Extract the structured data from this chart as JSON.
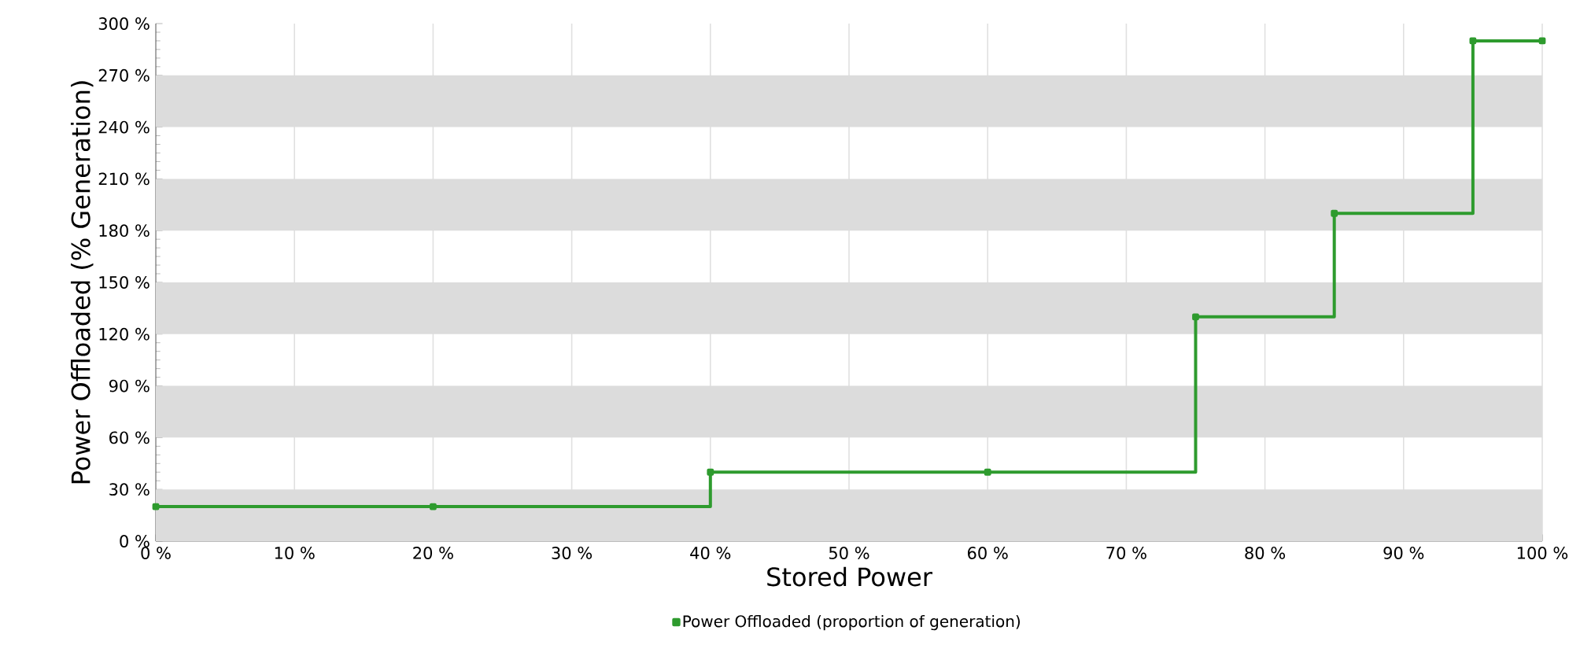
{
  "chart_data": {
    "type": "step",
    "xlabel": "Stored Power",
    "ylabel": "Power Offloaded (% Generation)",
    "xlim": [
      0,
      100
    ],
    "ylim": [
      0,
      300
    ],
    "xticks": [
      {
        "value": 0,
        "label": "0 %"
      },
      {
        "value": 10,
        "label": "10 %"
      },
      {
        "value": 20,
        "label": "20 %"
      },
      {
        "value": 30,
        "label": "30 %"
      },
      {
        "value": 40,
        "label": "40 %"
      },
      {
        "value": 50,
        "label": "50 %"
      },
      {
        "value": 60,
        "label": "60 %"
      },
      {
        "value": 70,
        "label": "70 %"
      },
      {
        "value": 80,
        "label": "80 %"
      },
      {
        "value": 90,
        "label": "90 %"
      },
      {
        "value": 100,
        "label": "100 %"
      }
    ],
    "yticks": [
      {
        "value": 0,
        "label": "0 %"
      },
      {
        "value": 30,
        "label": "30 %"
      },
      {
        "value": 60,
        "label": "60 %"
      },
      {
        "value": 90,
        "label": "90 %"
      },
      {
        "value": 120,
        "label": "120 %"
      },
      {
        "value": 150,
        "label": "150 %"
      },
      {
        "value": 180,
        "label": "180 %"
      },
      {
        "value": 210,
        "label": "210 %"
      },
      {
        "value": 240,
        "label": "240 %"
      },
      {
        "value": 270,
        "label": "270 %"
      },
      {
        "value": 300,
        "label": "300 %"
      }
    ],
    "grid": "x",
    "legend": "bottom",
    "marker": "square",
    "line_style": "solid",
    "bands": [
      {
        "axis": "y",
        "from": 0,
        "to": 30,
        "color": "#dcdcdc"
      },
      {
        "axis": "y",
        "from": 60,
        "to": 90,
        "color": "#dcdcdc"
      },
      {
        "axis": "y",
        "from": 120,
        "to": 150,
        "color": "#dcdcdc"
      },
      {
        "axis": "y",
        "from": 180,
        "to": 210,
        "color": "#dcdcdc"
      },
      {
        "axis": "y",
        "from": 240,
        "to": 270,
        "color": "#dcdcdc"
      }
    ],
    "series": [
      {
        "name": "Power Offloaded (proportion of generation)",
        "color": "#2e9b2e",
        "x": [
          0,
          20,
          40,
          60,
          75,
          85,
          95,
          100
        ],
        "values": [
          20,
          20,
          40,
          40,
          130,
          190,
          290,
          290
        ]
      }
    ]
  }
}
